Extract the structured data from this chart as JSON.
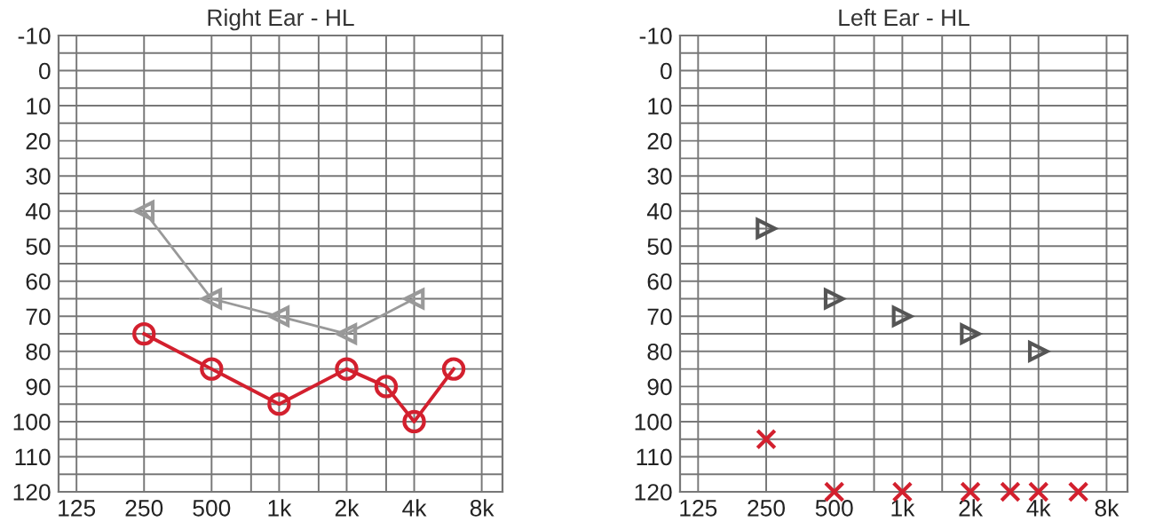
{
  "chart_data": [
    {
      "type": "line",
      "title": "Right Ear - HL",
      "xlim": [
        104,
        9900
      ],
      "ylim": [
        120,
        -10
      ],
      "log": "x",
      "xticks": [
        125,
        250,
        500,
        {
          "value": 750,
          "label": null
        },
        {
          "value": 1000,
          "label": "1k"
        },
        {
          "value": 1500,
          "label": null
        },
        {
          "value": 2000,
          "label": "2k"
        },
        {
          "value": 3000,
          "label": null
        },
        {
          "value": 4000,
          "label": "4k"
        },
        {
          "value": 8000,
          "label": "8k"
        }
      ],
      "yticks": [
        -10,
        {
          "value": -5,
          "label": null
        },
        0,
        {
          "value": 5,
          "label": null
        },
        10,
        {
          "value": 15,
          "label": null
        },
        20,
        {
          "value": 25,
          "label": null
        },
        30,
        {
          "value": 35,
          "label": null
        },
        40,
        {
          "value": 45,
          "label": null
        },
        50,
        {
          "value": 55,
          "label": null
        },
        60,
        {
          "value": 65,
          "label": null
        },
        70,
        {
          "value": 75,
          "label": null
        },
        80,
        {
          "value": 85,
          "label": null
        },
        90,
        {
          "value": 95,
          "label": null
        },
        100,
        {
          "value": 105,
          "label": null
        },
        110,
        {
          "value": 115,
          "label": null
        },
        120
      ],
      "grid": true,
      "series": [
        {
          "color": "#999999",
          "marker": "triangle",
          "x": [
            250,
            500,
            1000,
            2000,
            4000
          ],
          "values": [
            40,
            65,
            70,
            75,
            65
          ]
        },
        {
          "color": "#d3202e",
          "marker": "circle",
          "x": [
            250,
            500,
            1000,
            2000,
            3000,
            4000,
            6000
          ],
          "values": [
            75,
            85,
            95,
            85,
            90,
            100,
            85
          ]
        }
      ]
    },
    {
      "type": "scatter",
      "title": "Left Ear - HL",
      "xlim": [
        104,
        9900
      ],
      "ylim": [
        120,
        -10
      ],
      "log": "x",
      "xticks": [
        125,
        250,
        500,
        {
          "value": 750,
          "label": null
        },
        {
          "value": 1000,
          "label": "1k"
        },
        {
          "value": 1500,
          "label": null
        },
        {
          "value": 2000,
          "label": "2k"
        },
        {
          "value": 3000,
          "label": null
        },
        {
          "value": 4000,
          "label": "4k"
        },
        {
          "value": 8000,
          "label": "8k"
        }
      ],
      "yticks": [
        -10,
        {
          "value": -5,
          "label": null
        },
        0,
        {
          "value": 5,
          "label": null
        },
        10,
        {
          "value": 15,
          "label": null
        },
        20,
        {
          "value": 25,
          "label": null
        },
        30,
        {
          "value": 35,
          "label": null
        },
        40,
        {
          "value": 45,
          "label": null
        },
        50,
        {
          "value": 55,
          "label": null
        },
        60,
        {
          "value": 65,
          "label": null
        },
        70,
        {
          "value": 75,
          "label": null
        },
        80,
        {
          "value": 85,
          "label": null
        },
        90,
        {
          "value": 95,
          "label": null
        },
        100,
        {
          "value": 105,
          "label": null
        },
        110,
        {
          "value": 115,
          "label": null
        },
        120
      ],
      "grid": true,
      "series": [
        {
          "color": "#555555",
          "marker": "triangle",
          "x": [
            250,
            500,
            1000,
            2000,
            4000
          ],
          "values": [
            45,
            65,
            70,
            75,
            80
          ]
        },
        {
          "color": "#d3202e",
          "marker": "cross",
          "x": [
            250,
            500,
            1000,
            2000,
            3000,
            4000,
            6000
          ],
          "values": [
            105,
            120,
            120,
            120,
            120,
            120,
            120
          ]
        }
      ]
    }
  ]
}
